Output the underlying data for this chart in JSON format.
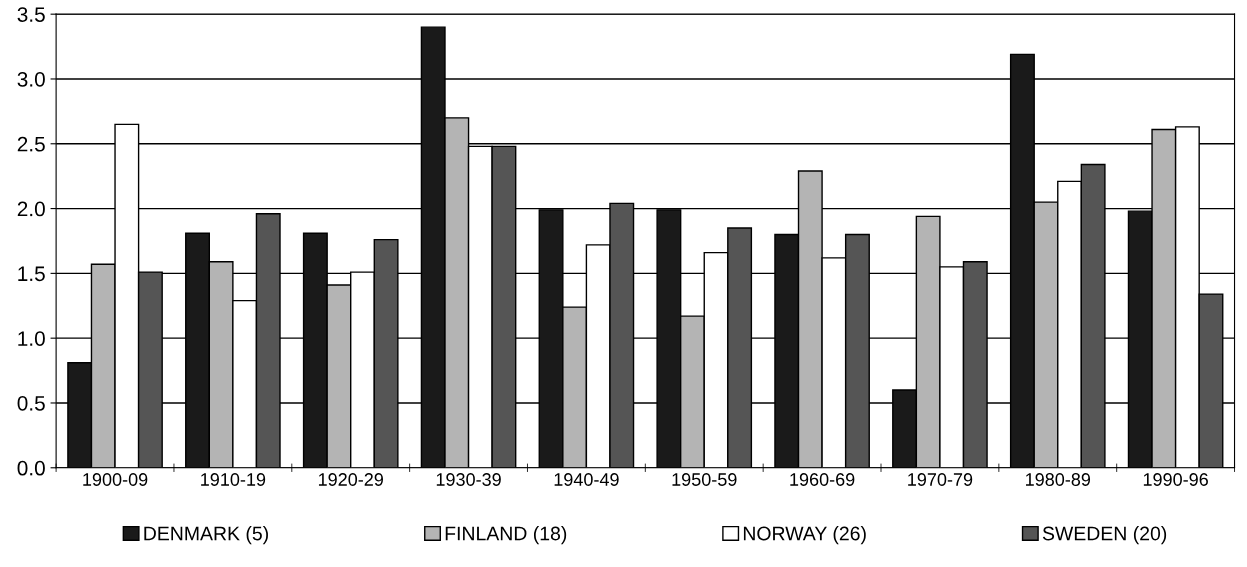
{
  "chart_data": {
    "type": "bar",
    "categories": [
      "1900-09",
      "1910-19",
      "1920-29",
      "1930-39",
      "1940-49",
      "1950-59",
      "1960-69",
      "1970-79",
      "1980-89",
      "1990-96"
    ],
    "series": [
      {
        "name": "DENMARK (5)",
        "color": "#1a1a1a",
        "values": [
          0.81,
          1.81,
          1.81,
          3.4,
          1.99,
          1.99,
          1.8,
          0.6,
          3.19,
          1.98
        ]
      },
      {
        "name": "FINLAND (18)",
        "color": "#b4b4b4",
        "values": [
          1.57,
          1.59,
          1.41,
          2.7,
          1.24,
          1.17,
          2.29,
          1.94,
          2.05,
          2.61
        ]
      },
      {
        "name": "NORWAY (26)",
        "color": "#ffffff",
        "values": [
          2.65,
          1.29,
          1.51,
          2.48,
          1.72,
          1.66,
          1.62,
          1.55,
          2.21,
          2.63
        ]
      },
      {
        "name": "SWEDEN (20)",
        "color": "#555555",
        "values": [
          1.51,
          1.96,
          1.76,
          2.48,
          2.04,
          1.85,
          1.8,
          1.59,
          2.34,
          1.34
        ]
      }
    ],
    "ylim": [
      0,
      3.5
    ],
    "yticks": [
      {
        "value": 0,
        "label": "0.0"
      },
      {
        "value": 0.5,
        "label": "0.5"
      },
      {
        "value": 1,
        "label": "1.0"
      },
      {
        "value": 1.5,
        "label": "1.5"
      },
      {
        "value": 2,
        "label": "2.0"
      },
      {
        "value": 2.5,
        "label": "2.5"
      },
      {
        "value": 3,
        "label": "3.0"
      },
      {
        "value": 3.5,
        "label": "3.5"
      }
    ],
    "grid": "y",
    "legend": "bottom"
  }
}
